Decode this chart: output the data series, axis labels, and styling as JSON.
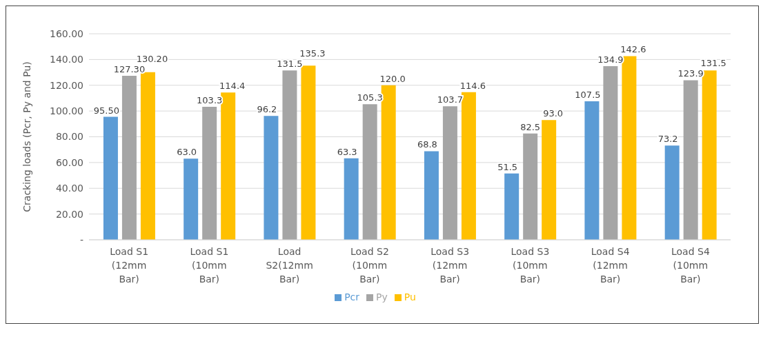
{
  "chart_data": {
    "type": "bar",
    "ylabel": "Cracking loads (Pcr, Py and Pu)",
    "categories": [
      "Load S1 (12mm Bar)",
      "Load S1 (10mm Bar)",
      "Load S2(12mm Bar)",
      "Load S2 (10mm Bar)",
      "Load S3 (12mm Bar)",
      "Load S3 (10mm Bar)",
      "Load S4 (12mm Bar)",
      "Load S4 (10mm Bar)"
    ],
    "series": [
      {
        "name": "Pcr",
        "color": "#5b9bd5",
        "values": [
          95.5,
          63.0,
          96.2,
          63.3,
          68.8,
          51.5,
          107.5,
          73.2
        ],
        "value_labels": [
          "95.50",
          "63.0",
          "96.2",
          "63.3",
          "68.8",
          "51.5",
          "107.5",
          "73.2"
        ]
      },
      {
        "name": "Py",
        "color": "#a5a5a5",
        "values": [
          127.3,
          103.3,
          131.5,
          105.3,
          103.7,
          82.5,
          134.9,
          123.9
        ],
        "value_labels": [
          "127.30",
          "103.3",
          "131.5",
          "105.3",
          "103.7",
          "82.5",
          "134.9",
          "123.9"
        ]
      },
      {
        "name": "Pu",
        "color": "#ffc000",
        "values": [
          130.2,
          114.4,
          135.3,
          120.0,
          114.6,
          93.0,
          142.6,
          131.5
        ],
        "value_labels": [
          "130.20",
          "114.4",
          "135.3",
          "120.0",
          "114.6",
          "93.0",
          "142.6",
          "131.5"
        ]
      }
    ],
    "ylim": [
      0,
      160
    ],
    "yticks": [
      {
        "value": 0,
        "label": "-"
      },
      {
        "value": 20,
        "label": "20.00"
      },
      {
        "value": 40,
        "label": "40.00"
      },
      {
        "value": 60,
        "label": "60.00"
      },
      {
        "value": 80,
        "label": "80.00"
      },
      {
        "value": 100,
        "label": "100.00"
      },
      {
        "value": 120,
        "label": "120.00"
      },
      {
        "value": 140,
        "label": "140.00"
      },
      {
        "value": 160,
        "label": "160.00"
      }
    ],
    "grid": "y",
    "legend": "bottom"
  }
}
